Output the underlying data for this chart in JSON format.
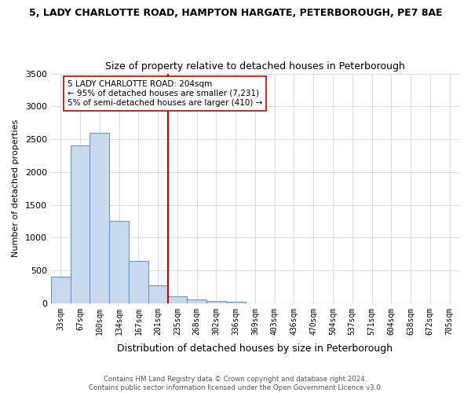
{
  "title1": "5, LADY CHARLOTTE ROAD, HAMPTON HARGATE, PETERBOROUGH, PE7 8AE",
  "title2": "Size of property relative to detached houses in Peterborough",
  "xlabel": "Distribution of detached houses by size in Peterborough",
  "ylabel": "Number of detached properties",
  "bar_labels": [
    "33sqm",
    "67sqm",
    "100sqm",
    "134sqm",
    "167sqm",
    "201sqm",
    "235sqm",
    "268sqm",
    "302sqm",
    "336sqm",
    "369sqm",
    "403sqm",
    "436sqm",
    "470sqm",
    "504sqm",
    "537sqm",
    "571sqm",
    "604sqm",
    "638sqm",
    "672sqm",
    "705sqm"
  ],
  "bar_values": [
    400,
    2400,
    2600,
    1250,
    650,
    270,
    110,
    55,
    30,
    20,
    0,
    0,
    0,
    0,
    0,
    0,
    0,
    0,
    0,
    0,
    0
  ],
  "bar_color": "#c9d9ed",
  "bar_edge_color": "#6699cc",
  "vertical_line_x": 5.5,
  "vertical_line_color": "#cc0000",
  "annotation_text": "5 LADY CHARLOTTE ROAD: 204sqm\n← 95% of detached houses are smaller (7,231)\n5% of semi-detached houses are larger (410) →",
  "annotation_box_color": "#ffffff",
  "annotation_box_edge": "#cc0000",
  "ylim": [
    0,
    3500
  ],
  "yticks": [
    0,
    500,
    1000,
    1500,
    2000,
    2500,
    3000,
    3500
  ],
  "footnote": "Contains HM Land Registry data © Crown copyright and database right 2024.\nContains public sector information licensed under the Open Government Licence v3.0.",
  "bg_color": "#ffffff",
  "plot_bg_color": "#ffffff",
  "grid_color": "#dddddd"
}
